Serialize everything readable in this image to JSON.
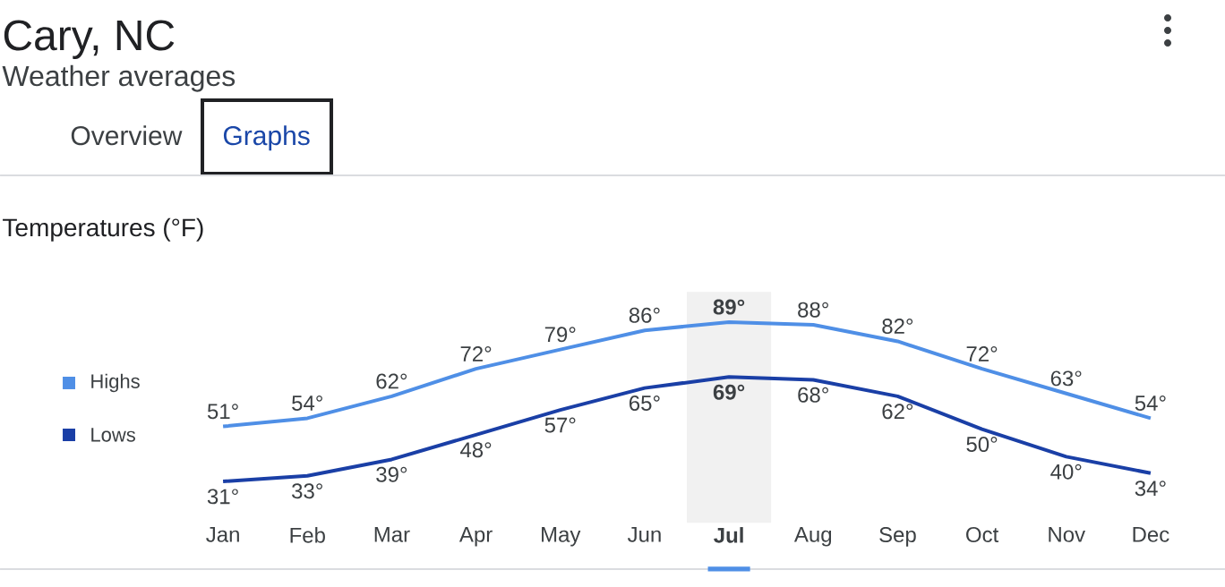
{
  "chart_data": {
    "type": "line",
    "title": "Cary, NC",
    "subtitle": "Weather averages",
    "ylabel": "Temperatures (°F)",
    "annotations": [
      "Overview",
      "Graphs"
    ],
    "categories": [
      "Jan",
      "Feb",
      "Mar",
      "Apr",
      "May",
      "Jun",
      "Jul",
      "Aug",
      "Sep",
      "Oct",
      "Nov",
      "Dec"
    ],
    "series": [
      {
        "name": "Highs",
        "color": "#4f8fe6",
        "values": [
          51,
          54,
          62,
          72,
          79,
          86,
          89,
          88,
          82,
          72,
          63,
          54
        ],
        "value_labels": [
          "51°",
          "54°",
          "62°",
          "72°",
          "79°",
          "86°",
          "89°",
          "88°",
          "82°",
          "72°",
          "63°",
          "54°"
        ]
      },
      {
        "name": "Lows",
        "color": "#1a3fa6",
        "values": [
          31,
          33,
          39,
          48,
          57,
          65,
          69,
          68,
          62,
          50,
          40,
          34
        ],
        "value_labels": [
          "31°",
          "33°",
          "39°",
          "48°",
          "57°",
          "65°",
          "69°",
          "68°",
          "62°",
          "50°",
          "40°",
          "34°"
        ]
      }
    ],
    "bands": [
      {
        "axis": "x",
        "from": "Jul",
        "to": "Jul",
        "color": "#f1f1f1"
      }
    ],
    "legend": "left",
    "marker": "none",
    "line_style": "solid"
  }
}
